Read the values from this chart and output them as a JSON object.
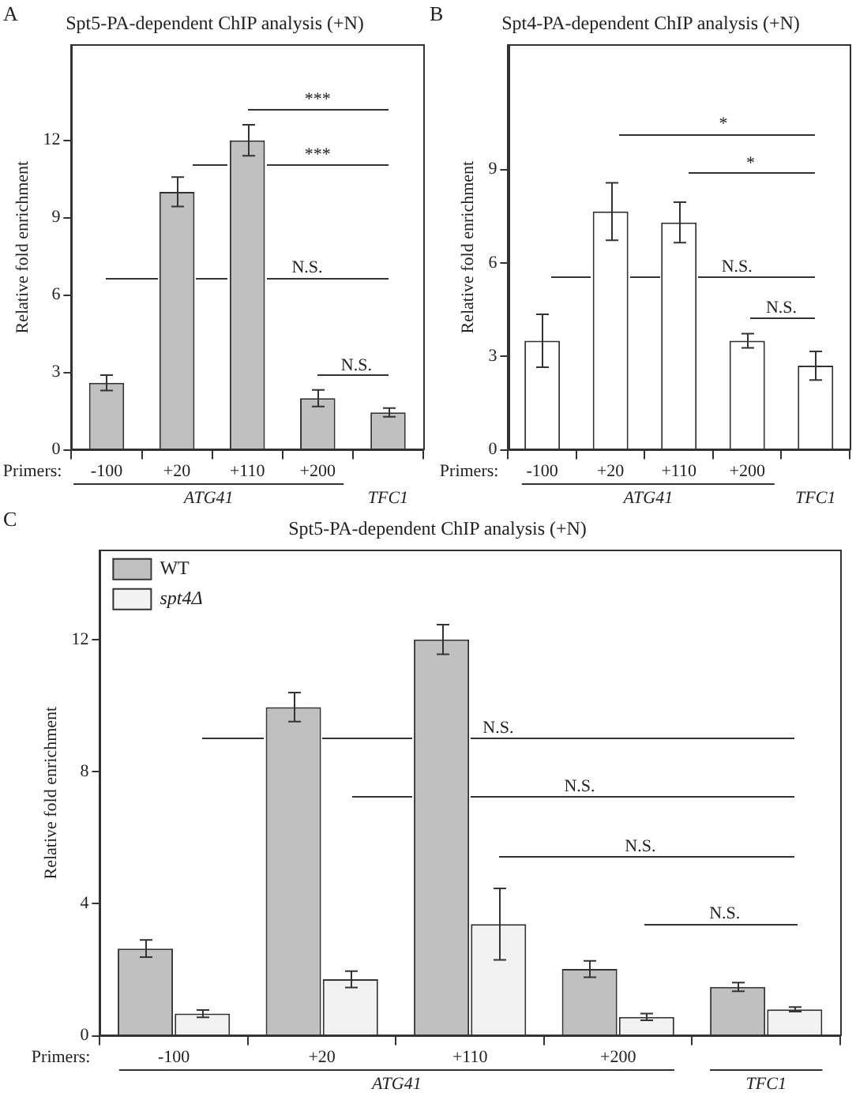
{
  "chart_data": [
    {
      "type": "bar",
      "title": "Spt5-PA-dependent ChIP analysis (+N)",
      "ylabel": "Relative fold enrichment",
      "categories": [
        "-100",
        "+20",
        "+110",
        "+200",
        null
      ],
      "values": [
        2.6,
        10.0,
        12.0,
        2.0,
        1.45
      ],
      "errors": [
        0.3,
        0.57,
        0.6,
        0.32,
        0.17
      ],
      "color": "#c0c0c0",
      "ylim": [
        0,
        15.7
      ],
      "yticks": [
        0,
        3,
        6,
        9,
        12
      ],
      "grid": false,
      "annotations": [
        "A",
        "Primers:",
        "ATG41",
        "TFC1",
        "***",
        "***",
        "N.S.",
        "N.S."
      ]
    },
    {
      "type": "bar",
      "title": "Spt4-PA-dependent ChIP analysis (+N)",
      "ylabel": "Relative fold enrichment",
      "categories": [
        "-100",
        "+20",
        "+110",
        "+200",
        null
      ],
      "values": [
        3.5,
        7.65,
        7.3,
        3.5,
        2.7
      ],
      "errors": [
        0.85,
        0.92,
        0.65,
        0.23,
        0.46
      ],
      "color": "#ffffff",
      "ylim": [
        0,
        13
      ],
      "yticks": [
        0,
        3,
        6,
        9
      ],
      "grid": false,
      "annotations": [
        "B",
        "Primers:",
        "ATG41",
        "TFC1",
        "*",
        "*",
        "N.S.",
        "N.S."
      ]
    },
    {
      "type": "bar",
      "title": "Spt5-PA-dependent ChIP analysis (+N)",
      "ylabel": "Relative fold enrichment",
      "categories": [
        "-100",
        "+20",
        "+110",
        "+200",
        null
      ],
      "series": [
        {
          "name": "WT",
          "color": "#c0c0c0",
          "values": [
            2.64,
            9.95,
            12.0,
            2.02,
            1.48
          ],
          "errors": [
            0.26,
            0.44,
            0.45,
            0.25,
            0.13
          ]
        },
        {
          "name": "spt4Δ",
          "color": "#f2f2f2",
          "values": [
            0.67,
            1.71,
            3.38,
            0.57,
            0.8
          ],
          "errors": [
            0.11,
            0.25,
            1.08,
            0.1,
            0.07
          ]
        }
      ],
      "ylim": [
        0,
        14.7
      ],
      "yticks": [
        0,
        4,
        8,
        12
      ],
      "grid": false,
      "legend": "top left",
      "annotations": [
        "C",
        "Primers:",
        "ATG41",
        "TFC1",
        "N.S.",
        "N.S.",
        "N.S.",
        "N.S."
      ]
    }
  ]
}
